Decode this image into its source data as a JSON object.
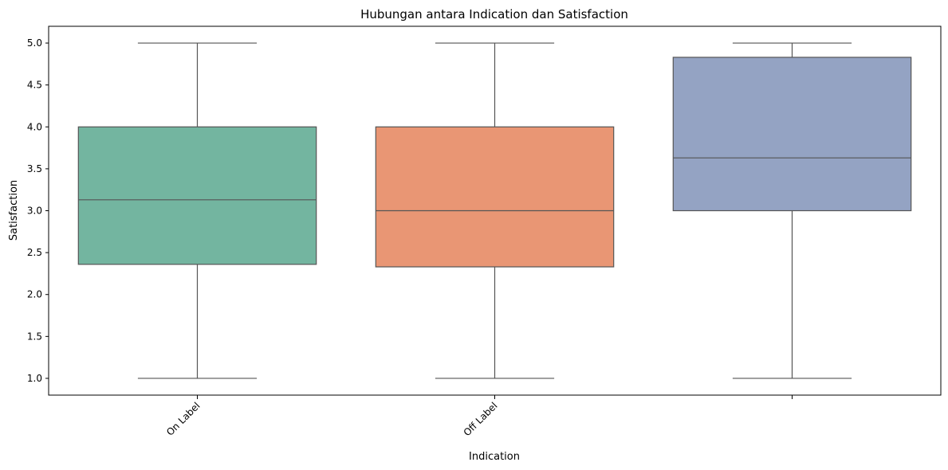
{
  "chart_data": {
    "type": "box",
    "title": "Hubungan antara Indication dan Satisfaction",
    "xlabel": "Indication",
    "ylabel": "Satisfaction",
    "ylim": [
      0.8,
      5.2
    ],
    "yticks": [
      "1.0",
      "1.5",
      "2.0",
      "2.5",
      "3.0",
      "3.5",
      "4.0",
      "4.5",
      "5.0"
    ],
    "categories": [
      "On Label",
      "Off Label",
      ""
    ],
    "boxes": [
      {
        "category": "On Label",
        "min": 1.0,
        "q1": 2.36,
        "median": 3.13,
        "q3": 4.0,
        "max": 5.0,
        "color": "#73b5a0"
      },
      {
        "category": "Off Label",
        "min": 1.0,
        "q1": 2.33,
        "median": 3.0,
        "q3": 4.0,
        "max": 5.0,
        "color": "#e99674"
      },
      {
        "category": "",
        "min": 1.0,
        "q1": 3.0,
        "median": 3.63,
        "q3": 4.83,
        "max": 5.0,
        "color": "#94a3c3"
      }
    ],
    "grid": false,
    "legend": "none"
  }
}
